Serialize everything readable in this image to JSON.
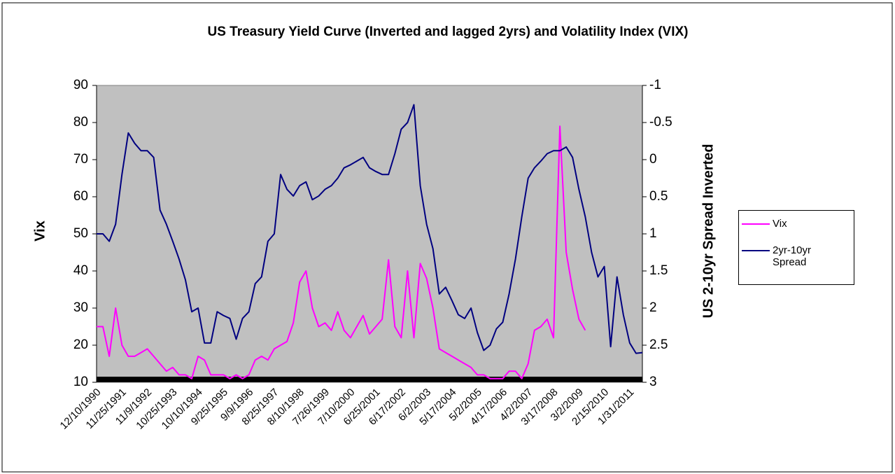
{
  "chart_data": {
    "type": "line",
    "title": "US Treasury Yield Curve (Inverted and lagged 2yrs) and Volatility Index (VIX)",
    "y_label": "Vix",
    "y2_label": "US 2-10yr Spread Inverted",
    "categories": [
      "12/10/1990",
      null,
      null,
      null,
      "11/25/1991",
      null,
      null,
      null,
      "11/9/1992",
      null,
      null,
      null,
      "10/25/1993",
      null,
      null,
      null,
      "10/10/1994",
      null,
      null,
      null,
      "9/25/1995",
      null,
      null,
      null,
      "9/9/1996",
      null,
      null,
      null,
      "8/25/1997",
      null,
      null,
      null,
      "8/10/1998",
      null,
      null,
      null,
      "7/26/1999",
      null,
      null,
      null,
      "7/10/2000",
      null,
      null,
      null,
      "6/25/2001",
      null,
      null,
      null,
      "6/17/2002",
      null,
      null,
      null,
      "6/2/2003",
      null,
      null,
      null,
      "5/17/2004",
      null,
      null,
      null,
      "5/2/2005",
      null,
      null,
      null,
      "4/17/2006",
      null,
      null,
      null,
      "4/2/2007",
      null,
      null,
      null,
      "3/17/2008",
      null,
      null,
      null,
      "3/2/2009",
      null,
      null,
      null,
      "2/15/2010",
      null,
      null,
      null,
      "1/31/2011",
      null,
      null
    ],
    "series": [
      {
        "name": "Vix",
        "color": "#ff00ff",
        "axis": "y",
        "values": [
          25,
          25,
          17,
          30,
          20,
          17,
          17,
          18,
          19,
          17,
          15,
          13,
          14,
          12,
          12,
          11,
          17,
          16,
          12,
          12,
          12,
          11,
          12,
          11,
          12,
          16,
          17,
          16,
          19,
          20,
          21,
          26,
          37,
          40,
          30,
          25,
          26,
          24,
          29,
          24,
          22,
          25,
          28,
          23,
          25,
          27,
          43,
          25,
          22,
          40,
          22,
          42,
          38,
          30,
          19,
          18,
          17,
          16,
          15,
          14,
          12,
          12,
          11,
          11,
          11,
          13,
          13,
          11,
          15,
          24,
          25,
          27,
          22,
          79,
          45,
          35,
          27,
          24,
          null,
          null,
          null,
          null,
          null,
          null,
          null,
          null,
          null
        ]
      },
      {
        "name": "2yr-10yr Spread",
        "color": "#000080",
        "axis": "y2",
        "values": [
          1.0,
          1.0,
          1.1,
          0.87,
          0.2,
          -0.36,
          -0.22,
          -0.12,
          -0.12,
          -0.03,
          0.68,
          0.87,
          1.1,
          1.34,
          1.62,
          2.05,
          2.0,
          2.47,
          2.47,
          2.05,
          2.1,
          2.14,
          2.42,
          2.14,
          2.05,
          1.67,
          1.58,
          1.1,
          1.0,
          0.2,
          0.4,
          0.49,
          0.35,
          0.3,
          0.54,
          0.49,
          0.4,
          0.35,
          0.25,
          0.11,
          0.07,
          0.02,
          -0.03,
          0.11,
          0.16,
          0.2,
          0.2,
          -0.08,
          -0.41,
          -0.5,
          -0.74,
          0.35,
          0.87,
          1.2,
          1.81,
          1.72,
          1.9,
          2.09,
          2.14,
          2.0,
          2.33,
          2.57,
          2.5,
          2.28,
          2.19,
          1.81,
          1.34,
          0.77,
          0.25,
          0.11,
          0.02,
          -0.08,
          -0.12,
          -0.12,
          -0.17,
          -0.03,
          0.4,
          0.77,
          1.25,
          1.58,
          1.44,
          2.52,
          1.58,
          2.09,
          2.47,
          2.61,
          2.6
        ]
      }
    ],
    "ylim": [
      10,
      90
    ],
    "yticks": [
      10,
      20,
      30,
      40,
      50,
      60,
      70,
      80,
      90
    ],
    "y2lim": [
      -1,
      3
    ],
    "y2_inverted": true,
    "y2ticks": [
      -1,
      -0.5,
      0,
      0.5,
      1,
      1.5,
      2,
      2.5,
      3
    ],
    "legend": "right",
    "background": "#c0c0c0"
  }
}
